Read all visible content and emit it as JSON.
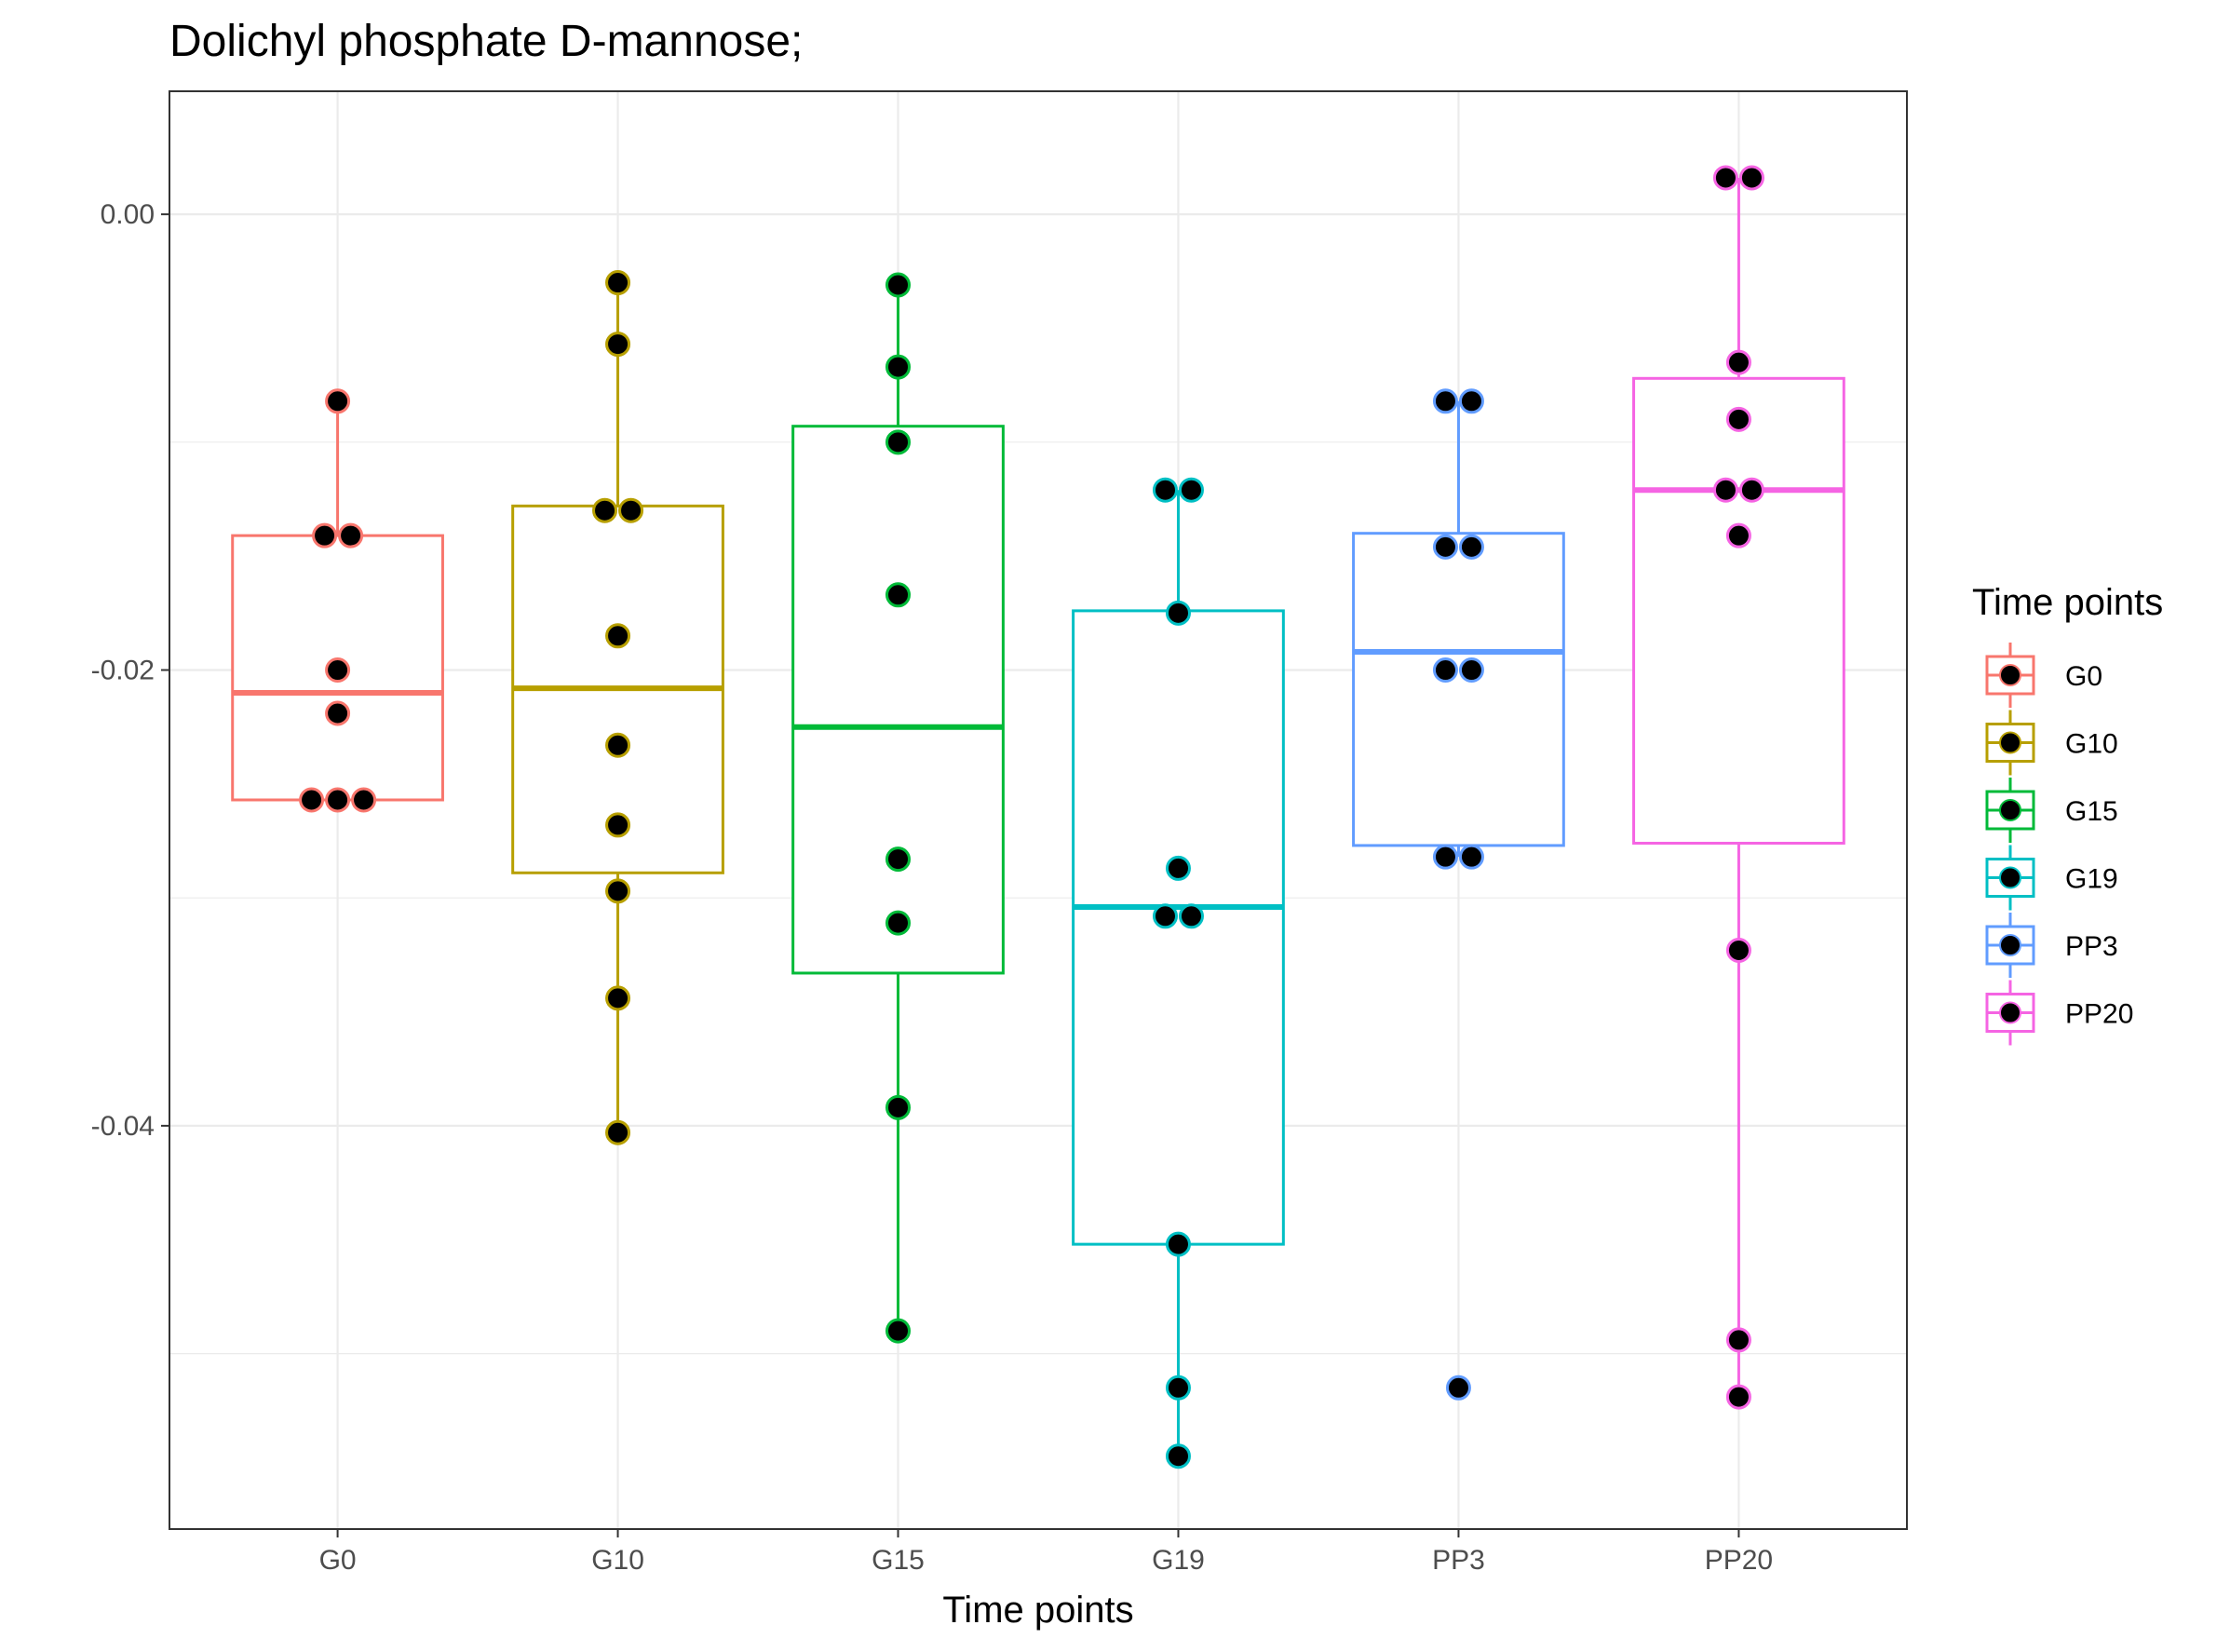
{
  "chart_data": {
    "type": "box",
    "title": "Dolichyl phosphate D-mannose;",
    "xlabel": "Time points",
    "ylabel": "",
    "ylim": [
      -0.0577,
      0.0054
    ],
    "yticks": [
      0.0,
      -0.02,
      -0.04
    ],
    "ytick_labels": [
      "0.00",
      "-0.02",
      "-0.04"
    ],
    "categories": [
      "G0",
      "G10",
      "G15",
      "G19",
      "PP3",
      "PP20"
    ],
    "grid": true,
    "legend": {
      "title": "Time points",
      "position": "right",
      "entries": [
        "G0",
        "G10",
        "G15",
        "G19",
        "PP3",
        "PP20"
      ]
    },
    "series": [
      {
        "name": "G0",
        "color": "#F8766D",
        "box": {
          "whisker_low": -0.0257,
          "q1": -0.0257,
          "median": -0.021,
          "q3": -0.0141,
          "whisker_high": -0.0082
        },
        "points": [
          -0.0082,
          -0.0141,
          -0.0141,
          -0.02,
          -0.0219,
          -0.0257,
          -0.0257,
          -0.0257
        ]
      },
      {
        "name": "G10",
        "color": "#B79F00",
        "box": {
          "whisker_low": -0.0403,
          "q1": -0.0289,
          "median": -0.0208,
          "q3": -0.0128,
          "whisker_high": -0.003
        },
        "points": [
          -0.003,
          -0.0057,
          -0.013,
          -0.013,
          -0.0185,
          -0.0233,
          -0.0268,
          -0.0297,
          -0.0344,
          -0.0403
        ]
      },
      {
        "name": "G15",
        "color": "#00BA38",
        "box": {
          "whisker_low": -0.049,
          "q1": -0.0333,
          "median": -0.0225,
          "q3": -0.0093,
          "whisker_high": -0.0031
        },
        "points": [
          -0.0031,
          -0.0067,
          -0.01,
          -0.0167,
          -0.0283,
          -0.0311,
          -0.0392,
          -0.049
        ]
      },
      {
        "name": "G19",
        "color": "#00BFC4",
        "box": {
          "whisker_low": -0.0545,
          "q1": -0.0452,
          "median": -0.0304,
          "q3": -0.0174,
          "whisker_high": -0.0121
        },
        "points": [
          -0.0121,
          -0.0121,
          -0.0175,
          -0.0287,
          -0.0308,
          -0.0308,
          -0.0452,
          -0.0515,
          -0.0545
        ]
      },
      {
        "name": "PP3",
        "color": "#619CFF",
        "box": {
          "whisker_low": -0.0282,
          "q1": -0.0277,
          "median": -0.0192,
          "q3": -0.014,
          "whisker_high": -0.0082
        },
        "points": [
          -0.0082,
          -0.0082,
          -0.0146,
          -0.0146,
          -0.02,
          -0.02,
          -0.0282,
          -0.0282,
          -0.0515
        ]
      },
      {
        "name": "PP20",
        "color": "#F564E3",
        "box": {
          "whisker_low": -0.0519,
          "q1": -0.0276,
          "median": -0.0121,
          "q3": -0.0072,
          "whisker_high": 0.0016
        },
        "points": [
          0.0016,
          0.0016,
          -0.0065,
          -0.009,
          -0.0121,
          -0.0121,
          -0.0141,
          -0.0323,
          -0.0494,
          -0.0519
        ]
      }
    ]
  }
}
